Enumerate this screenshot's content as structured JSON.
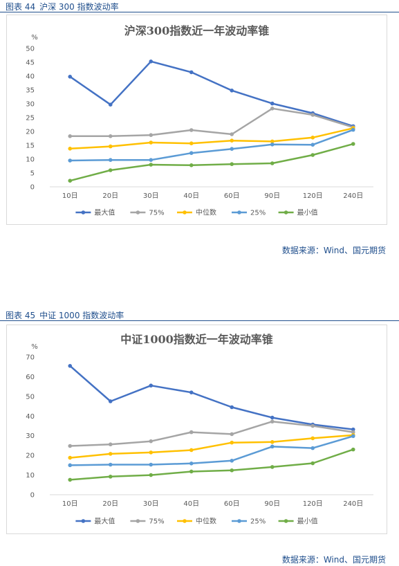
{
  "figures": [
    {
      "caption_num": "图表 44",
      "caption_text": "沪深 300 指数波动率",
      "source": "数据来源：Wind、国元期货"
    },
    {
      "caption_num": "图表 45",
      "caption_text": "中证 1000 指数波动率",
      "source": "数据来源：Wind、国元期货"
    }
  ],
  "chart_data": [
    {
      "type": "line",
      "title": "沪深300指数近一年波动率锥",
      "ylabel": "%",
      "xlabel": "",
      "ylim": [
        0,
        50
      ],
      "ystep": 5,
      "grid": false,
      "legend_position": "bottom",
      "categories": [
        "10日",
        "20日",
        "30日",
        "40日",
        "60日",
        "90日",
        "120日",
        "240日"
      ],
      "series": [
        {
          "name": "最大值",
          "color": "#4472c4",
          "values": [
            39.8,
            29.7,
            45.3,
            41.4,
            34.8,
            30.1,
            26.6,
            21.9
          ]
        },
        {
          "name": "75%",
          "color": "#a5a5a5",
          "values": [
            18.3,
            18.3,
            18.7,
            20.5,
            19.0,
            28.3,
            26.0,
            21.5
          ]
        },
        {
          "name": "中位数",
          "color": "#ffc000",
          "values": [
            13.8,
            14.6,
            16.0,
            15.7,
            16.7,
            16.4,
            17.8,
            21.2
          ]
        },
        {
          "name": "25%",
          "color": "#5b9bd5",
          "values": [
            9.5,
            9.7,
            9.7,
            12.2,
            13.7,
            15.3,
            15.2,
            20.6
          ]
        },
        {
          "name": "最小值",
          "color": "#70ad47",
          "values": [
            2.2,
            6.0,
            8.0,
            7.8,
            8.2,
            8.5,
            11.5,
            15.5
          ]
        }
      ]
    },
    {
      "type": "line",
      "title": "中证1000指数近一年波动率锥",
      "ylabel": "%",
      "xlabel": "",
      "ylim": [
        0,
        70
      ],
      "ystep": 10,
      "grid": false,
      "legend_position": "bottom",
      "categories": [
        "10日",
        "20日",
        "30日",
        "40日",
        "60日",
        "90日",
        "120日",
        "240日"
      ],
      "series": [
        {
          "name": "最大值",
          "color": "#4472c4",
          "values": [
            65.5,
            47.5,
            55.5,
            52.0,
            44.5,
            39.2,
            35.7,
            33.2
          ]
        },
        {
          "name": "75%",
          "color": "#a5a5a5",
          "values": [
            24.8,
            25.6,
            27.2,
            31.8,
            30.8,
            37.2,
            35.0,
            31.8
          ]
        },
        {
          "name": "中位数",
          "color": "#ffc000",
          "values": [
            18.8,
            20.8,
            21.5,
            22.7,
            26.5,
            26.8,
            28.7,
            30.3
          ]
        },
        {
          "name": "25%",
          "color": "#5b9bd5",
          "values": [
            15.0,
            15.3,
            15.3,
            15.9,
            17.3,
            24.5,
            23.7,
            29.8
          ]
        },
        {
          "name": "最小值",
          "color": "#70ad47",
          "values": [
            7.6,
            9.2,
            10.0,
            11.8,
            12.4,
            14.1,
            16.0,
            23.0
          ]
        }
      ]
    }
  ]
}
